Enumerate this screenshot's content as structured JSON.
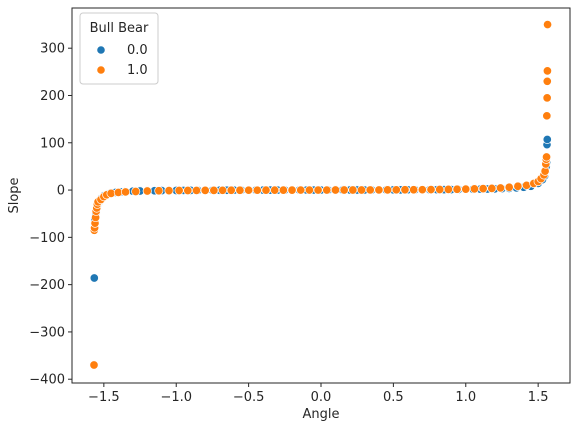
{
  "chart_data": {
    "type": "scatter",
    "title": "",
    "xlabel": "Angle",
    "ylabel": "Slope",
    "xlim": [
      -1.72,
      1.72
    ],
    "ylim": [
      -408,
      385
    ],
    "xticks": [
      -1.5,
      -1.0,
      -0.5,
      0.0,
      0.5,
      1.0,
      1.5
    ],
    "xtick_labels": [
      "−1.5",
      "−1.0",
      "−0.5",
      "0.0",
      "0.5",
      "1.0",
      "1.5"
    ],
    "yticks": [
      -400,
      -300,
      -200,
      -100,
      0,
      100,
      200,
      300
    ],
    "ytick_labels": [
      "−400",
      "−300",
      "−200",
      "−100",
      "0",
      "100",
      "200",
      "300"
    ],
    "grid": false,
    "legend": {
      "title": "Bull Bear",
      "placement": "upper-left",
      "entries": [
        {
          "label": "0.0",
          "color": "#1f77b4"
        },
        {
          "label": "1.0",
          "color": "#ff7f0e"
        }
      ]
    },
    "series": [
      {
        "key": "0.0",
        "color": "#1f77b4",
        "x": [
          -1.566,
          -1.562,
          -1.558,
          -1.555,
          -1.551,
          -1.548,
          -1.544,
          -1.54,
          -1.53,
          -1.52,
          -1.5,
          -1.47,
          -1.45,
          -1.42,
          -1.38,
          -1.35,
          -1.3,
          -1.25,
          -1.2,
          -1.15,
          -1.1,
          -1.05,
          -1.0,
          -0.95,
          -0.9,
          -0.85,
          -0.8,
          -0.75,
          -0.7,
          -0.65,
          -0.6,
          -0.55,
          -0.5,
          -0.45,
          -0.4,
          -0.35,
          -0.3,
          -0.25,
          -0.2,
          -0.15,
          -0.1,
          -0.05,
          0.0,
          0.05,
          0.1,
          0.15,
          0.2,
          0.25,
          0.3,
          0.35,
          0.4,
          0.45,
          0.5,
          0.55,
          0.6,
          0.65,
          0.7,
          0.75,
          0.8,
          0.85,
          0.9,
          0.95,
          1.0,
          1.05,
          1.1,
          1.15,
          1.2,
          1.25,
          1.3,
          1.35,
          1.4,
          1.45,
          1.5,
          1.53,
          1.545,
          1.552,
          1.556,
          1.559,
          1.561,
          1.563
        ],
        "y": [
          -186,
          -62,
          -55,
          -50,
          -45,
          -40,
          -34,
          -30,
          -24,
          -18,
          -12,
          -8,
          -6,
          -5,
          -4,
          -3,
          -2.4,
          -2,
          -1.6,
          -1.4,
          -1.2,
          -1,
          -1,
          -0.8,
          -0.7,
          -0.6,
          -0.5,
          -0.5,
          -0.4,
          -0.4,
          -0.3,
          -0.3,
          -0.3,
          -0.2,
          -0.2,
          -0.1,
          -0.1,
          -0.1,
          0,
          0,
          0,
          0,
          0,
          0,
          0,
          0.1,
          0.1,
          0.1,
          0.2,
          0.2,
          0.3,
          0.3,
          0.4,
          0.4,
          0.5,
          0.5,
          0.6,
          0.7,
          0.8,
          0.9,
          1,
          1.2,
          1.5,
          1.7,
          2,
          2.2,
          2.5,
          3,
          3.5,
          4.5,
          6,
          8,
          14,
          22,
          30,
          40,
          50,
          58,
          96,
          107
        ]
      },
      {
        "key": "1.0",
        "color": "#ff7f0e",
        "x": [
          -1.568,
          -1.566,
          -1.564,
          -1.561,
          -1.557,
          -1.553,
          -1.549,
          -1.545,
          -1.54,
          -1.52,
          -1.5,
          -1.48,
          -1.45,
          -1.4,
          -1.35,
          -1.28,
          -1.2,
          -1.12,
          -1.05,
          -0.98,
          -0.92,
          -0.86,
          -0.8,
          -0.74,
          -0.68,
          -0.62,
          -0.56,
          -0.5,
          -0.44,
          -0.38,
          -0.32,
          -0.26,
          -0.2,
          -0.14,
          -0.08,
          -0.02,
          0.04,
          0.1,
          0.16,
          0.22,
          0.28,
          0.34,
          0.4,
          0.46,
          0.52,
          0.58,
          0.64,
          0.7,
          0.76,
          0.82,
          0.88,
          0.94,
          1.0,
          1.06,
          1.12,
          1.18,
          1.24,
          1.3,
          1.36,
          1.42,
          1.47,
          1.5,
          1.52,
          1.54,
          1.548,
          1.553,
          1.556,
          1.558,
          1.56,
          1.562,
          1.563,
          1.564,
          1.565
        ],
        "y": [
          -370,
          -85,
          -80,
          -70,
          -58,
          -45,
          -38,
          -30,
          -25,
          -20,
          -14,
          -10,
          -7,
          -5,
          -4,
          -3,
          -2,
          -1.5,
          -1.2,
          -1,
          -0.9,
          -0.8,
          -0.7,
          -0.6,
          -0.5,
          -0.4,
          -0.4,
          -0.3,
          -0.3,
          -0.2,
          -0.2,
          -0.1,
          -0.1,
          0,
          0,
          0,
          0,
          0.1,
          0.1,
          0.2,
          0.2,
          0.3,
          0.3,
          0.4,
          0.5,
          0.6,
          0.7,
          0.8,
          1,
          1.2,
          1.4,
          1.7,
          2,
          2.5,
          3,
          3.5,
          4.5,
          6,
          8,
          10,
          14,
          18,
          24,
          32,
          40,
          55,
          65,
          70,
          157,
          195,
          230,
          252,
          350
        ]
      }
    ]
  }
}
